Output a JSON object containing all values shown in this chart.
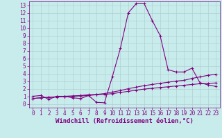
{
  "xlabel": "Windchill (Refroidissement éolien,°C)",
  "ylabel": "",
  "background_color": "#c8ecec",
  "line_color": "#800080",
  "grid_color": "#b0d0d0",
  "xlim": [
    -0.5,
    23.5
  ],
  "ylim": [
    -0.5,
    13.5
  ],
  "xticks": [
    0,
    1,
    2,
    3,
    4,
    5,
    6,
    7,
    8,
    9,
    10,
    11,
    12,
    13,
    14,
    15,
    16,
    17,
    18,
    19,
    20,
    21,
    22,
    23
  ],
  "yticks": [
    0,
    1,
    2,
    3,
    4,
    5,
    6,
    7,
    8,
    9,
    10,
    11,
    12,
    13
  ],
  "line1_x": [
    0,
    1,
    2,
    3,
    4,
    5,
    6,
    7,
    8,
    9,
    10,
    11,
    12,
    13,
    14,
    15,
    16,
    17,
    18,
    19,
    20,
    21,
    22,
    23
  ],
  "line1_y": [
    1.0,
    1.1,
    0.6,
    1.0,
    1.0,
    0.8,
    0.7,
    1.1,
    0.2,
    0.15,
    3.6,
    7.3,
    12.0,
    13.2,
    13.2,
    11.0,
    9.0,
    4.5,
    4.2,
    4.2,
    4.7,
    2.8,
    2.5,
    2.3
  ],
  "line2_x": [
    0,
    1,
    2,
    3,
    4,
    5,
    6,
    7,
    8,
    9,
    10,
    11,
    12,
    13,
    14,
    15,
    16,
    17,
    18,
    19,
    20,
    21,
    22,
    23
  ],
  "line2_y": [
    0.7,
    0.8,
    0.85,
    0.95,
    1.0,
    1.05,
    1.1,
    1.2,
    1.25,
    1.35,
    1.55,
    1.75,
    2.0,
    2.2,
    2.4,
    2.55,
    2.7,
    2.85,
    3.0,
    3.1,
    3.35,
    3.55,
    3.75,
    3.9
  ],
  "line3_x": [
    0,
    1,
    2,
    3,
    4,
    5,
    6,
    7,
    8,
    9,
    10,
    11,
    12,
    13,
    14,
    15,
    16,
    17,
    18,
    19,
    20,
    21,
    22,
    23
  ],
  "line3_y": [
    0.7,
    0.8,
    0.85,
    0.9,
    0.95,
    1.0,
    1.05,
    1.1,
    1.2,
    1.25,
    1.35,
    1.5,
    1.65,
    1.8,
    1.95,
    2.05,
    2.15,
    2.25,
    2.35,
    2.45,
    2.55,
    2.65,
    2.7,
    2.75
  ],
  "marker": "+",
  "markersize": 3,
  "linewidth": 0.8,
  "fontsize_ticks": 5.5,
  "fontsize_xlabel": 6.5
}
